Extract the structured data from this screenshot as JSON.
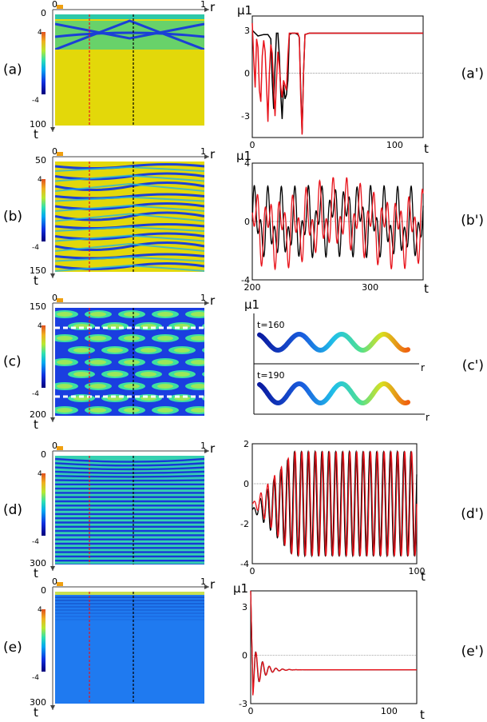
{
  "panels": [
    {
      "label": "(a)",
      "rlabel": "(a')",
      "t_start": "0",
      "t_end": "100",
      "pattern": "a",
      "crossings": [
        26,
        34
      ],
      "cbar": {
        "max": "4",
        "min": "-4"
      }
    },
    {
      "label": "(b)",
      "rlabel": "(b')",
      "t_start": "50",
      "t_end": "150",
      "pattern": "b",
      "cbar": {
        "max": "4",
        "min": "-4"
      }
    },
    {
      "label": "(c)",
      "rlabel": "(c')",
      "t_start": "150",
      "t_end": "200",
      "pattern": "c",
      "cbar": {
        "max": "4",
        "min": "-4"
      }
    },
    {
      "label": "(d)",
      "rlabel": "(d')",
      "t_start": "0",
      "t_end": "300",
      "pattern": "d",
      "cbar": {
        "max": "4",
        "min": "-4"
      }
    },
    {
      "label": "(e)",
      "rlabel": "(e')",
      "t_start": "0",
      "t_end": "300",
      "pattern": "e",
      "cbar": {
        "max": "4",
        "min": "-4"
      }
    }
  ],
  "axis": {
    "r": "r",
    "t": "t",
    "r0": "0",
    "r1": "1",
    "mu": "μ1"
  },
  "colors": {
    "red": "#e8141c",
    "black": "#000000",
    "yellow": "#e3d80a",
    "blue": "#1b40d6",
    "field_blue": "#1f7af0"
  },
  "chart_data": [
    {
      "type": "line",
      "panel": "(a')",
      "xlabel": "t",
      "ylabel": "μ1",
      "xlim": [
        0,
        120
      ],
      "ylim": [
        -4.5,
        4
      ],
      "xticks": [
        "0",
        "100"
      ],
      "yticks": [
        "3",
        "0",
        "-3"
      ],
      "series": [
        {
          "color": "black",
          "points": [
            [
              0,
              3
            ],
            [
              4,
              2.6
            ],
            [
              8,
              2.7
            ],
            [
              11,
              2.7
            ],
            [
              13,
              2.4
            ],
            [
              14,
              -0.5
            ],
            [
              15,
              -2.5
            ],
            [
              16,
              0.5
            ],
            [
              17,
              2.8
            ],
            [
              18,
              2.8
            ],
            [
              19,
              1.2
            ],
            [
              20,
              -1.5
            ],
            [
              21,
              -3.2
            ],
            [
              22,
              -0.8
            ],
            [
              23,
              -1.8
            ],
            [
              24,
              -1.5
            ],
            [
              25,
              -0.5
            ],
            [
              26,
              2.7
            ],
            [
              28,
              2.8
            ],
            [
              30,
              2.8
            ],
            [
              32,
              2.7
            ],
            [
              33,
              2.5
            ],
            [
              34,
              -1
            ],
            [
              35,
              -4.2
            ],
            [
              36,
              0
            ],
            [
              37,
              2.7
            ],
            [
              40,
              2.8
            ],
            [
              120,
              2.8
            ]
          ]
        },
        {
          "color": "red",
          "points": [
            [
              0,
              3.5
            ],
            [
              1,
              1
            ],
            [
              2,
              -1
            ],
            [
              3,
              2.4
            ],
            [
              4,
              1.8
            ],
            [
              5,
              -1.2
            ],
            [
              6,
              -2
            ],
            [
              7,
              1.2
            ],
            [
              8,
              2.3
            ],
            [
              9,
              1.5
            ],
            [
              10,
              -0.8
            ],
            [
              11,
              -3.4
            ],
            [
              12,
              0
            ],
            [
              13,
              2
            ],
            [
              14,
              1.4
            ],
            [
              15,
              -1
            ],
            [
              16,
              -3
            ],
            [
              17,
              -0.5
            ],
            [
              18,
              1.5
            ],
            [
              19,
              0.5
            ],
            [
              20,
              -1
            ],
            [
              21,
              -1.7
            ],
            [
              22,
              -0.5
            ],
            [
              24,
              -1.2
            ],
            [
              25,
              1.2
            ],
            [
              26,
              2.8
            ],
            [
              32,
              2.8
            ],
            [
              33,
              2.5
            ],
            [
              34,
              -1.5
            ],
            [
              35,
              -4.3
            ],
            [
              36,
              0
            ],
            [
              37,
              2.7
            ],
            [
              40,
              2.8
            ],
            [
              120,
              2.8
            ]
          ]
        }
      ]
    },
    {
      "type": "line",
      "panel": "(b')",
      "xlabel": "t",
      "ylabel": "μ1",
      "xlim": [
        200,
        345
      ],
      "ylim": [
        -4,
        4
      ],
      "xticks": [
        "200",
        "300"
      ],
      "yticks": [
        "4",
        "0",
        "-4"
      ],
      "note": "irregular oscillations between about -4 and 3"
    },
    {
      "type": "line",
      "panel": "(c')",
      "xlabel": "r",
      "ylabel": "μ1",
      "annotations": [
        "t=160",
        "t=190"
      ],
      "note": "two snapshots of a sinusoidal profile, about 3.5 periods each, colored along r"
    },
    {
      "type": "line",
      "panel": "(d')",
      "xlabel": "t",
      "xlim": [
        0,
        100
      ],
      "ylim": [
        -4,
        2
      ],
      "xticks": [
        "0",
        "100"
      ],
      "yticks": [
        "2",
        "0",
        "-2",
        "-4"
      ],
      "note": "regular oscillation between about -3.6 and 1.5"
    },
    {
      "type": "line",
      "panel": "(e')",
      "xlabel": "t",
      "ylabel": "μ1",
      "xlim": [
        0,
        120
      ],
      "ylim": [
        -3,
        4
      ],
      "xticks": [
        "0",
        "100"
      ],
      "yticks": [
        "3",
        "0",
        "-3"
      ],
      "note": "damped oscillation settling near -0.9"
    }
  ]
}
